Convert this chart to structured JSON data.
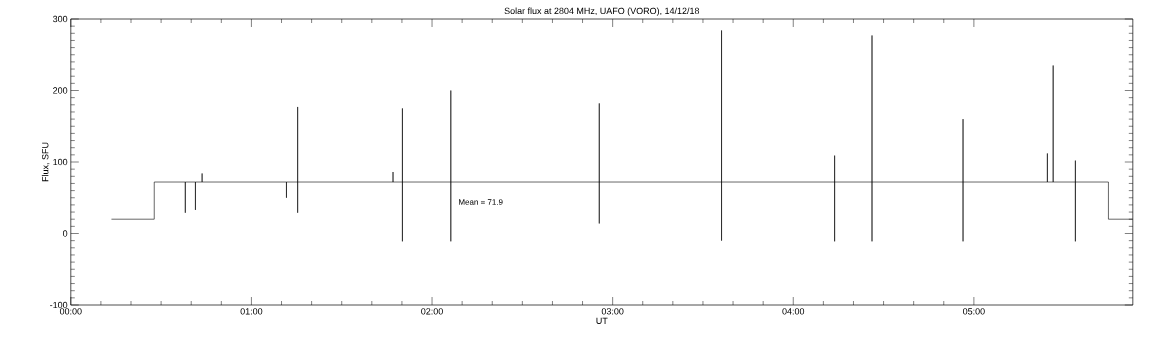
{
  "chart_data": {
    "type": "line",
    "title": "Solar flux at 2804 MHz, UAFO (VORO),  14/12/18",
    "xlabel": "UT",
    "ylabel": "Flux, SFU",
    "annotations": [
      "Mean =    71.9"
    ],
    "x": [
      0.225,
      0.462,
      0.462,
      0.634,
      0.634,
      0.634,
      0.69,
      0.69,
      0.69,
      0.727,
      0.727,
      0.727,
      1.194,
      1.194,
      1.194,
      1.256,
      1.256,
      1.256,
      1.256,
      1.784,
      1.784,
      1.784,
      1.836,
      1.836,
      1.836,
      1.836,
      2.104,
      2.104,
      2.104,
      2.104,
      2.926,
      2.926,
      2.926,
      2.926,
      3.603,
      3.603,
      3.603,
      3.603,
      4.229,
      4.229,
      4.229,
      4.229,
      4.436,
      4.436,
      4.436,
      4.436,
      4.94,
      4.94,
      4.94,
      4.94,
      5.407,
      5.407,
      5.407,
      5.439,
      5.439,
      5.439,
      5.562,
      5.562,
      5.562,
      5.562,
      5.745,
      5.745,
      5.88
    ],
    "series": [
      {
        "color": "#000000",
        "values": [
          20,
          20,
          72,
          72,
          29,
          72,
          72,
          33,
          72,
          72,
          84,
          72,
          72,
          50,
          72,
          72,
          177,
          29,
          72,
          72,
          86,
          72,
          72,
          175,
          -11,
          72,
          72,
          200,
          -11,
          72,
          72,
          182,
          14,
          72,
          72,
          284,
          -10,
          72,
          72,
          109,
          -11,
          72,
          72,
          277,
          -11,
          72,
          72,
          160,
          -11,
          72,
          72,
          112,
          72,
          72,
          235,
          72,
          72,
          102,
          -11,
          72,
          72,
          20,
          20
        ]
      }
    ],
    "xlim": [
      0,
      5.88
    ],
    "ylim": [
      -100,
      300
    ],
    "xticks": [
      {
        "value": 0,
        "label": "00:00"
      },
      {
        "value": 1,
        "label": "01:00"
      },
      {
        "value": 2,
        "label": "02:00"
      },
      {
        "value": 3,
        "label": "03:00"
      },
      {
        "value": 4,
        "label": "04:00"
      },
      {
        "value": 5,
        "label": "05:00"
      }
    ],
    "yticks": [
      -100,
      0,
      100,
      200,
      300
    ],
    "grid": false,
    "marker": "none",
    "line_style": "solid"
  }
}
